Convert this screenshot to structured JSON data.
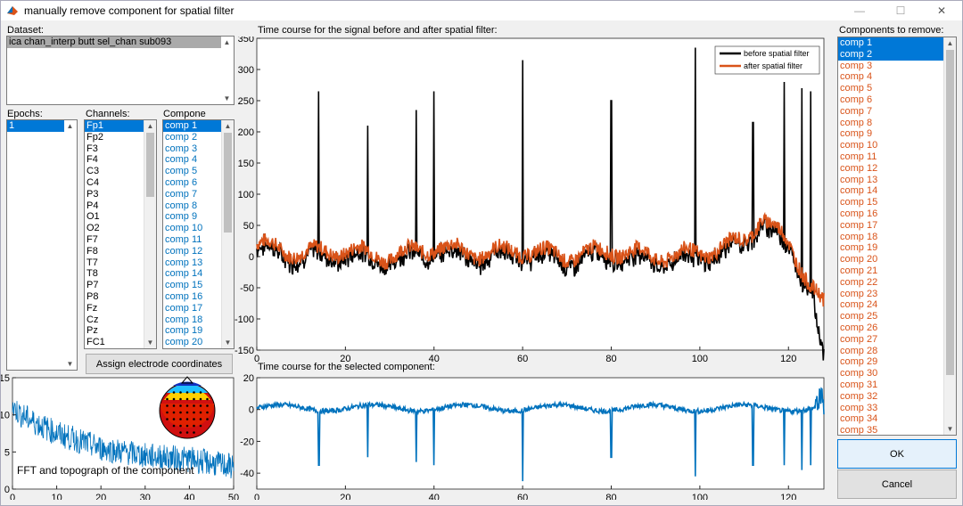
{
  "window": {
    "title": "manually remove component for spatial filter"
  },
  "dataset": {
    "label": "Dataset:",
    "items": [
      "ica chan_interp butt sel_chan sub093"
    ]
  },
  "epochs": {
    "label": "Epochs:",
    "items": [
      "1"
    ]
  },
  "channels": {
    "label": "Channels:",
    "items": [
      "Fp1",
      "Fp2",
      "F3",
      "F4",
      "C3",
      "C4",
      "P3",
      "P4",
      "O1",
      "O2",
      "F7",
      "F8",
      "T7",
      "T8",
      "P7",
      "P8",
      "Fz",
      "Cz",
      "Pz",
      "FC1"
    ]
  },
  "components": {
    "label": "Compone",
    "items": [
      "comp 1",
      "comp 2",
      "comp 3",
      "comp 4",
      "comp 5",
      "comp 6",
      "comp 7",
      "comp 8",
      "comp 9",
      "comp 10",
      "comp 11",
      "comp 12",
      "comp 13",
      "comp 14",
      "comp 15",
      "comp 16",
      "comp 17",
      "comp 18",
      "comp 19",
      "comp 20"
    ]
  },
  "assign_button": "Assign electrode coordinates",
  "remove": {
    "label": "Components to remove:",
    "items": [
      "comp 1",
      "comp 2",
      "comp 3",
      "comp 4",
      "comp 5",
      "comp 6",
      "comp 7",
      "comp 8",
      "comp 9",
      "comp 10",
      "comp 11",
      "comp 12",
      "comp 13",
      "comp 14",
      "comp 15",
      "comp 16",
      "comp 17",
      "comp 18",
      "comp 19",
      "comp 20",
      "comp 21",
      "comp 22",
      "comp 23",
      "comp 24",
      "comp 25",
      "comp 26",
      "comp 27",
      "comp 28",
      "comp 29",
      "comp 30",
      "comp 31",
      "comp 32",
      "comp 33",
      "comp 34",
      "comp 35"
    ]
  },
  "ok_label": "OK",
  "cancel_label": "Cancel",
  "colors": {
    "selection": "#0078d7",
    "before": "#000000",
    "after": "#d95319",
    "component": "#0072bd"
  },
  "chart_data": [
    {
      "type": "line",
      "title": "Time course for the signal before and after spatial filter:",
      "xlim": [
        0,
        128
      ],
      "ylim": [
        -150,
        350
      ],
      "xticks": [
        0,
        20,
        40,
        60,
        80,
        100,
        120
      ],
      "yticks": [
        -150,
        -100,
        -50,
        0,
        50,
        100,
        150,
        200,
        250,
        300,
        350
      ],
      "legend": "top-right",
      "series": [
        {
          "name": "before spatial filter",
          "color": "#000000",
          "x": [
            0,
            1,
            14,
            25,
            36,
            40,
            60,
            80,
            99,
            112,
            119,
            123,
            125,
            127,
            128
          ],
          "y": [
            55,
            5,
            265,
            210,
            235,
            265,
            315,
            250,
            335,
            215,
            280,
            270,
            265,
            -60,
            -120
          ]
        },
        {
          "name": "after spatial filter",
          "color": "#d95319",
          "x": [
            0,
            10,
            20,
            30,
            40,
            50,
            60,
            70,
            80,
            90,
            100,
            110,
            114,
            120,
            128
          ],
          "y": [
            20,
            5,
            10,
            0,
            15,
            5,
            10,
            0,
            10,
            0,
            5,
            25,
            65,
            20,
            -80
          ]
        }
      ]
    },
    {
      "type": "line",
      "title": "Time course for the selected component:",
      "xlim": [
        0,
        128
      ],
      "ylim": [
        -50,
        20
      ],
      "xticks": [
        0,
        20,
        40,
        60,
        80,
        100,
        120
      ],
      "yticks": [
        -40,
        -20,
        0,
        20
      ],
      "series": [
        {
          "color": "#0072bd",
          "x": [
            0,
            14,
            25,
            36,
            40,
            60,
            80,
            99,
            112,
            119,
            123,
            125,
            128
          ],
          "y": [
            0,
            -35,
            -30,
            -33,
            -35,
            -45,
            -30,
            -42,
            -35,
            -35,
            -38,
            -35,
            10
          ]
        }
      ]
    },
    {
      "type": "line",
      "title": "FFT and topograph of the component",
      "xlim": [
        0,
        50
      ],
      "ylim": [
        0,
        15
      ],
      "xticks": [
        0,
        10,
        20,
        30,
        40,
        50
      ],
      "yticks": [
        0,
        5,
        10,
        15
      ],
      "series": [
        {
          "color": "#0072bd",
          "x": [
            0,
            2,
            5,
            10,
            15,
            20,
            30,
            40,
            50
          ],
          "y": [
            11,
            10,
            9,
            7.5,
            6.5,
            5.5,
            4.5,
            4,
            3
          ]
        }
      ]
    }
  ]
}
